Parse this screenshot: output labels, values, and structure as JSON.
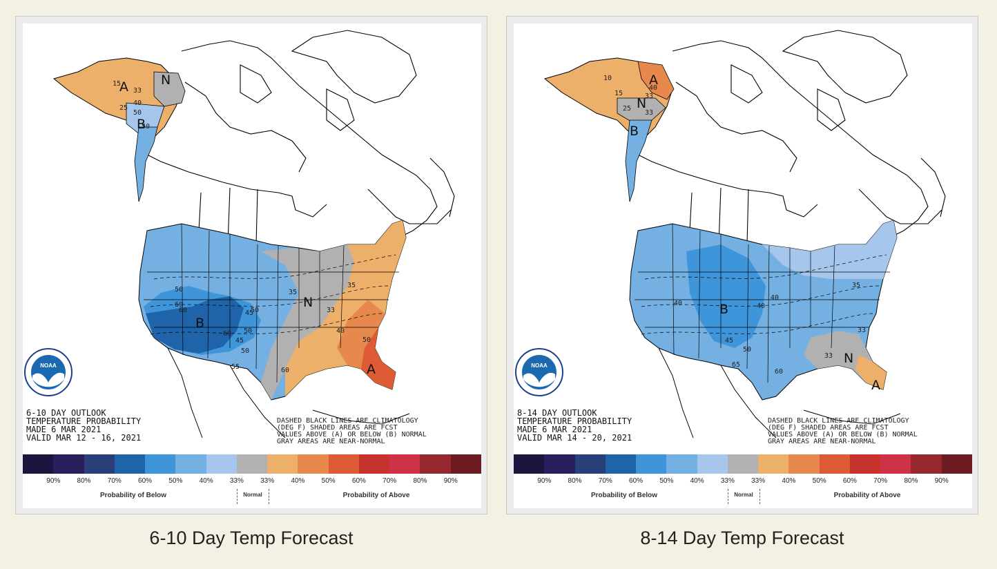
{
  "maps": [
    {
      "title_line1": "6-10 DAY OUTLOOK",
      "title_line2": "TEMPERATURE PROBABILITY",
      "made": "MADE  6 MAR 2021",
      "valid": "VALID  MAR 12 - 16, 2021",
      "note_line1": "DASHED BLACK LINES ARE CLIMATOLOGY",
      "note_line2": "(DEG F) SHADED AREAS ARE FCST",
      "note_line3": "VALUES ABOVE (A) OR BELOW (B) NORMAL",
      "note_line4": "GRAY AREAS ARE NEAR-NORMAL",
      "caption": "6-10 Day Temp Forecast",
      "region_letters": [
        "A",
        "N",
        "B",
        "B",
        "N",
        "A"
      ],
      "contour_labels": [
        "15",
        "33",
        "25",
        "40",
        "50",
        "50",
        "50",
        "60",
        "35",
        "45",
        "50",
        "60",
        "45",
        "50",
        "55",
        "35",
        "33",
        "40",
        "50",
        "60",
        "50",
        "60"
      ]
    },
    {
      "title_line1": "8-14 DAY OUTLOOK",
      "title_line2": "TEMPERATURE PROBABILITY",
      "made": "MADE  6 MAR 2021",
      "valid": "VALID  MAR 14 - 20, 2021",
      "note_line1": "DASHED BLACK LINES ARE CLIMATOLOGY",
      "note_line2": "(DEG F) SHADED AREAS ARE FCST",
      "note_line3": "VALUES ABOVE (A) OR BELOW (B) NORMAL",
      "note_line4": "GRAY AREAS ARE NEAR-NORMAL",
      "caption": "8-14 Day Temp Forecast",
      "region_letters": [
        "A",
        "N",
        "B",
        "B",
        "N",
        "A"
      ],
      "contour_labels": [
        "10",
        "40",
        "15",
        "33",
        "33",
        "25",
        "35",
        "40",
        "40",
        "45",
        "50",
        "65",
        "60",
        "33",
        "33",
        "40"
      ]
    }
  ],
  "logo_text": "NOAA",
  "legend": {
    "colors": [
      "#1b1640",
      "#2a1e5c",
      "#283f79",
      "#1f63a8",
      "#3f95da",
      "#74b0e2",
      "#a6c6eb",
      "#b1b1b1",
      "#edb06a",
      "#e7884c",
      "#dd5b35",
      "#c6322e",
      "#cf3148",
      "#96272f",
      "#6d1a22"
    ],
    "percents": [
      "90%",
      "80%",
      "70%",
      "60%",
      "50%",
      "40%",
      "33%",
      "33%",
      "40%",
      "50%",
      "60%",
      "70%",
      "80%",
      "90%"
    ],
    "below_label": "Probability of Below",
    "normal_label": "Normal",
    "above_label": "Probability of Above"
  }
}
